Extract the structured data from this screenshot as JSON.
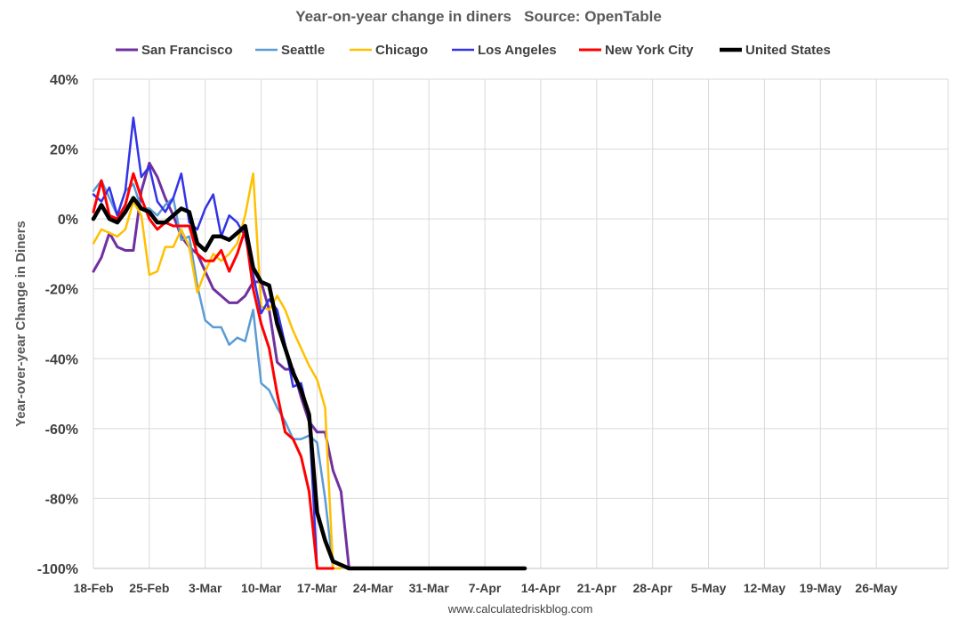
{
  "chart_data": {
    "type": "line",
    "title": "Year-on-year change in diners   Source: OpenTable",
    "xlabel": "",
    "ylabel": "Year-over-year Change in Diners",
    "ylim": [
      -100,
      40
    ],
    "yticks": [
      40,
      20,
      0,
      -20,
      -40,
      -60,
      -80,
      -100
    ],
    "ytick_labels": [
      "40%",
      "20%",
      "0%",
      "-20%",
      "-40%",
      "-60%",
      "-80%",
      "-100%"
    ],
    "x_start": 0,
    "x_end": 107,
    "xticks": [
      0,
      7,
      14,
      21,
      28,
      35,
      42,
      49,
      56,
      63,
      70,
      77,
      84,
      91,
      98
    ],
    "xtick_labels": [
      "18-Feb",
      "25-Feb",
      "3-Mar",
      "10-Mar",
      "17-Mar",
      "24-Mar",
      "31-Mar",
      "7-Apr",
      "14-Apr",
      "21-Apr",
      "28-Apr",
      "5-May",
      "12-May",
      "19-May",
      "26-May"
    ],
    "grid": true,
    "legend_position": "top",
    "source_note": "www.calculatedriskblog.com",
    "series": [
      {
        "name": "San Francisco",
        "color": "#7030A0",
        "width": 3,
        "values": [
          -15,
          -11,
          -4,
          -8,
          -9,
          -9,
          8,
          16,
          12,
          6,
          1,
          -5,
          -8,
          -10,
          -15,
          -20,
          -22,
          -24,
          -24,
          -22,
          -18,
          -18,
          -26,
          -41,
          -43,
          -43,
          -51,
          -58,
          -61,
          -61,
          -72,
          -78,
          -100,
          -100
        ]
      },
      {
        "name": "Seattle",
        "color": "#5B9BD5",
        "width": 2.5,
        "values": [
          8,
          11,
          6,
          1,
          8,
          10,
          3,
          3,
          1,
          4,
          6,
          -6,
          -5,
          -19,
          -29,
          -31,
          -31,
          -36,
          -34,
          -35,
          -26,
          -47,
          -49,
          -54,
          -58,
          -63,
          -63,
          -62,
          -64,
          -80,
          -100
        ]
      },
      {
        "name": "Chicago",
        "color": "#FFC000",
        "width": 2.5,
        "values": [
          -7,
          -3,
          -4,
          -5,
          -3,
          5,
          1,
          -16,
          -15,
          -8,
          -8,
          -3,
          -8,
          -21,
          -15,
          -10,
          -12,
          -10,
          -7,
          1,
          13,
          -25,
          -26,
          -22,
          -26,
          -32,
          -37,
          -42,
          -46,
          -54,
          -100,
          -100
        ]
      },
      {
        "name": "Los Angeles",
        "color": "#3333E8",
        "width": 2.5,
        "values": [
          7,
          5,
          9,
          1,
          8,
          29,
          12,
          15,
          5,
          2,
          6,
          13,
          -1,
          -3,
          3,
          7,
          -5,
          1,
          -1,
          -5,
          -16,
          -27,
          -23,
          -26,
          -36,
          -48,
          -47,
          -57,
          -100,
          -100
        ]
      },
      {
        "name": "New York City",
        "color": "#FF0000",
        "width": 3,
        "values": [
          2,
          11,
          1,
          0,
          4,
          13,
          6,
          0,
          -3,
          -1,
          -2,
          -2,
          -2,
          -10,
          -12,
          -12,
          -9,
          -15,
          -10,
          -3,
          -20,
          -30,
          -37,
          -50,
          -61,
          -63,
          -68,
          -78,
          -100,
          -100,
          -100
        ]
      },
      {
        "name": "United States",
        "color": "#000000",
        "width": 4.5,
        "values": [
          0,
          4,
          0,
          -1,
          2,
          6,
          3,
          2,
          -1,
          -1,
          1,
          3,
          2,
          -7,
          -9,
          -5,
          -5,
          -6,
          -4,
          -2,
          -14,
          -18,
          -19,
          -30,
          -37,
          -44,
          -49,
          -56,
          -84,
          -92,
          -98,
          -99,
          -100,
          -100,
          -100,
          -100,
          -100,
          -100,
          -100,
          -100,
          -100,
          -100,
          -100,
          -100,
          -100,
          -100,
          -100,
          -100,
          -100,
          -100,
          -100,
          -100,
          -100,
          -100,
          -100
        ]
      }
    ]
  }
}
